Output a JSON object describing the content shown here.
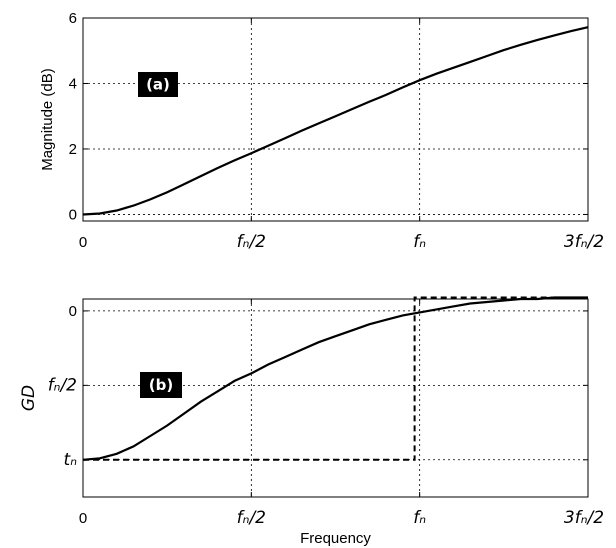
{
  "chart_data": [
    {
      "id": "a",
      "type": "line",
      "panel_label": "(a)",
      "ylabel": "Magnitude (dB)",
      "ylim": [
        -0.2,
        6
      ],
      "xlim": [
        0,
        1.5
      ],
      "grid": true,
      "x_ticks": [
        {
          "value": 0,
          "label": "0"
        },
        {
          "value": 0.5,
          "label": "fₙ/2"
        },
        {
          "value": 1.0,
          "label": "fₙ"
        },
        {
          "value": 1.5,
          "label": "3fₙ/2"
        }
      ],
      "y_ticks": [
        {
          "value": 0,
          "label": "0"
        },
        {
          "value": 2,
          "label": "2"
        },
        {
          "value": 4,
          "label": "4"
        },
        {
          "value": 6,
          "label": "6"
        }
      ],
      "series": [
        {
          "style": "solid",
          "x": [
            0,
            0.05,
            0.1,
            0.15,
            0.2,
            0.25,
            0.3,
            0.35,
            0.4,
            0.45,
            0.5,
            0.55,
            0.6,
            0.65,
            0.7,
            0.75,
            0.8,
            0.85,
            0.9,
            0.95,
            1.0,
            1.05,
            1.1,
            1.15,
            1.2,
            1.25,
            1.3,
            1.35,
            1.4,
            1.45,
            1.5
          ],
          "y": [
            0,
            0.03,
            0.12,
            0.27,
            0.46,
            0.68,
            0.92,
            1.17,
            1.42,
            1.65,
            1.87,
            2.1,
            2.33,
            2.56,
            2.78,
            3.0,
            3.22,
            3.44,
            3.65,
            3.88,
            4.1,
            4.3,
            4.48,
            4.66,
            4.84,
            5.02,
            5.18,
            5.33,
            5.47,
            5.6,
            5.72
          ]
        }
      ]
    },
    {
      "id": "b",
      "type": "line",
      "panel_label": "(b)",
      "ylabel": "GD",
      "ylim": [
        -0.25,
        1.08
      ],
      "xlim": [
        0,
        1.5
      ],
      "grid": true,
      "x_ticks": [
        {
          "value": 0,
          "label": "0"
        },
        {
          "value": 0.5,
          "label": "fₙ/2"
        },
        {
          "value": 1.0,
          "label": "fₙ"
        },
        {
          "value": 1.5,
          "label": "3fₙ/2"
        }
      ],
      "y_ticks": [
        {
          "value": 0,
          "label": "tₙ"
        },
        {
          "value": 0.5,
          "label": "fₙ/2"
        },
        {
          "value": 1,
          "label": "0"
        }
      ],
      "xlabel": "Frequency",
      "series": [
        {
          "style": "solid",
          "x": [
            0,
            0.05,
            0.1,
            0.15,
            0.2,
            0.25,
            0.3,
            0.35,
            0.4,
            0.45,
            0.5,
            0.55,
            0.6,
            0.65,
            0.7,
            0.75,
            0.8,
            0.85,
            0.9,
            0.95,
            1.0,
            1.05,
            1.1,
            1.15,
            1.2,
            1.25,
            1.3,
            1.35,
            1.4,
            1.45,
            1.5
          ],
          "y": [
            0,
            0.01,
            0.04,
            0.09,
            0.16,
            0.23,
            0.31,
            0.39,
            0.46,
            0.53,
            0.58,
            0.64,
            0.69,
            0.74,
            0.79,
            0.83,
            0.87,
            0.91,
            0.94,
            0.97,
            0.99,
            1.01,
            1.03,
            1.05,
            1.06,
            1.07,
            1.08,
            1.08,
            1.09,
            1.09,
            1.09
          ]
        },
        {
          "style": "dashed",
          "x": [
            0,
            0.985,
            0.985,
            1.5
          ],
          "y": [
            0,
            0,
            1.09,
            1.09
          ]
        }
      ]
    }
  ]
}
